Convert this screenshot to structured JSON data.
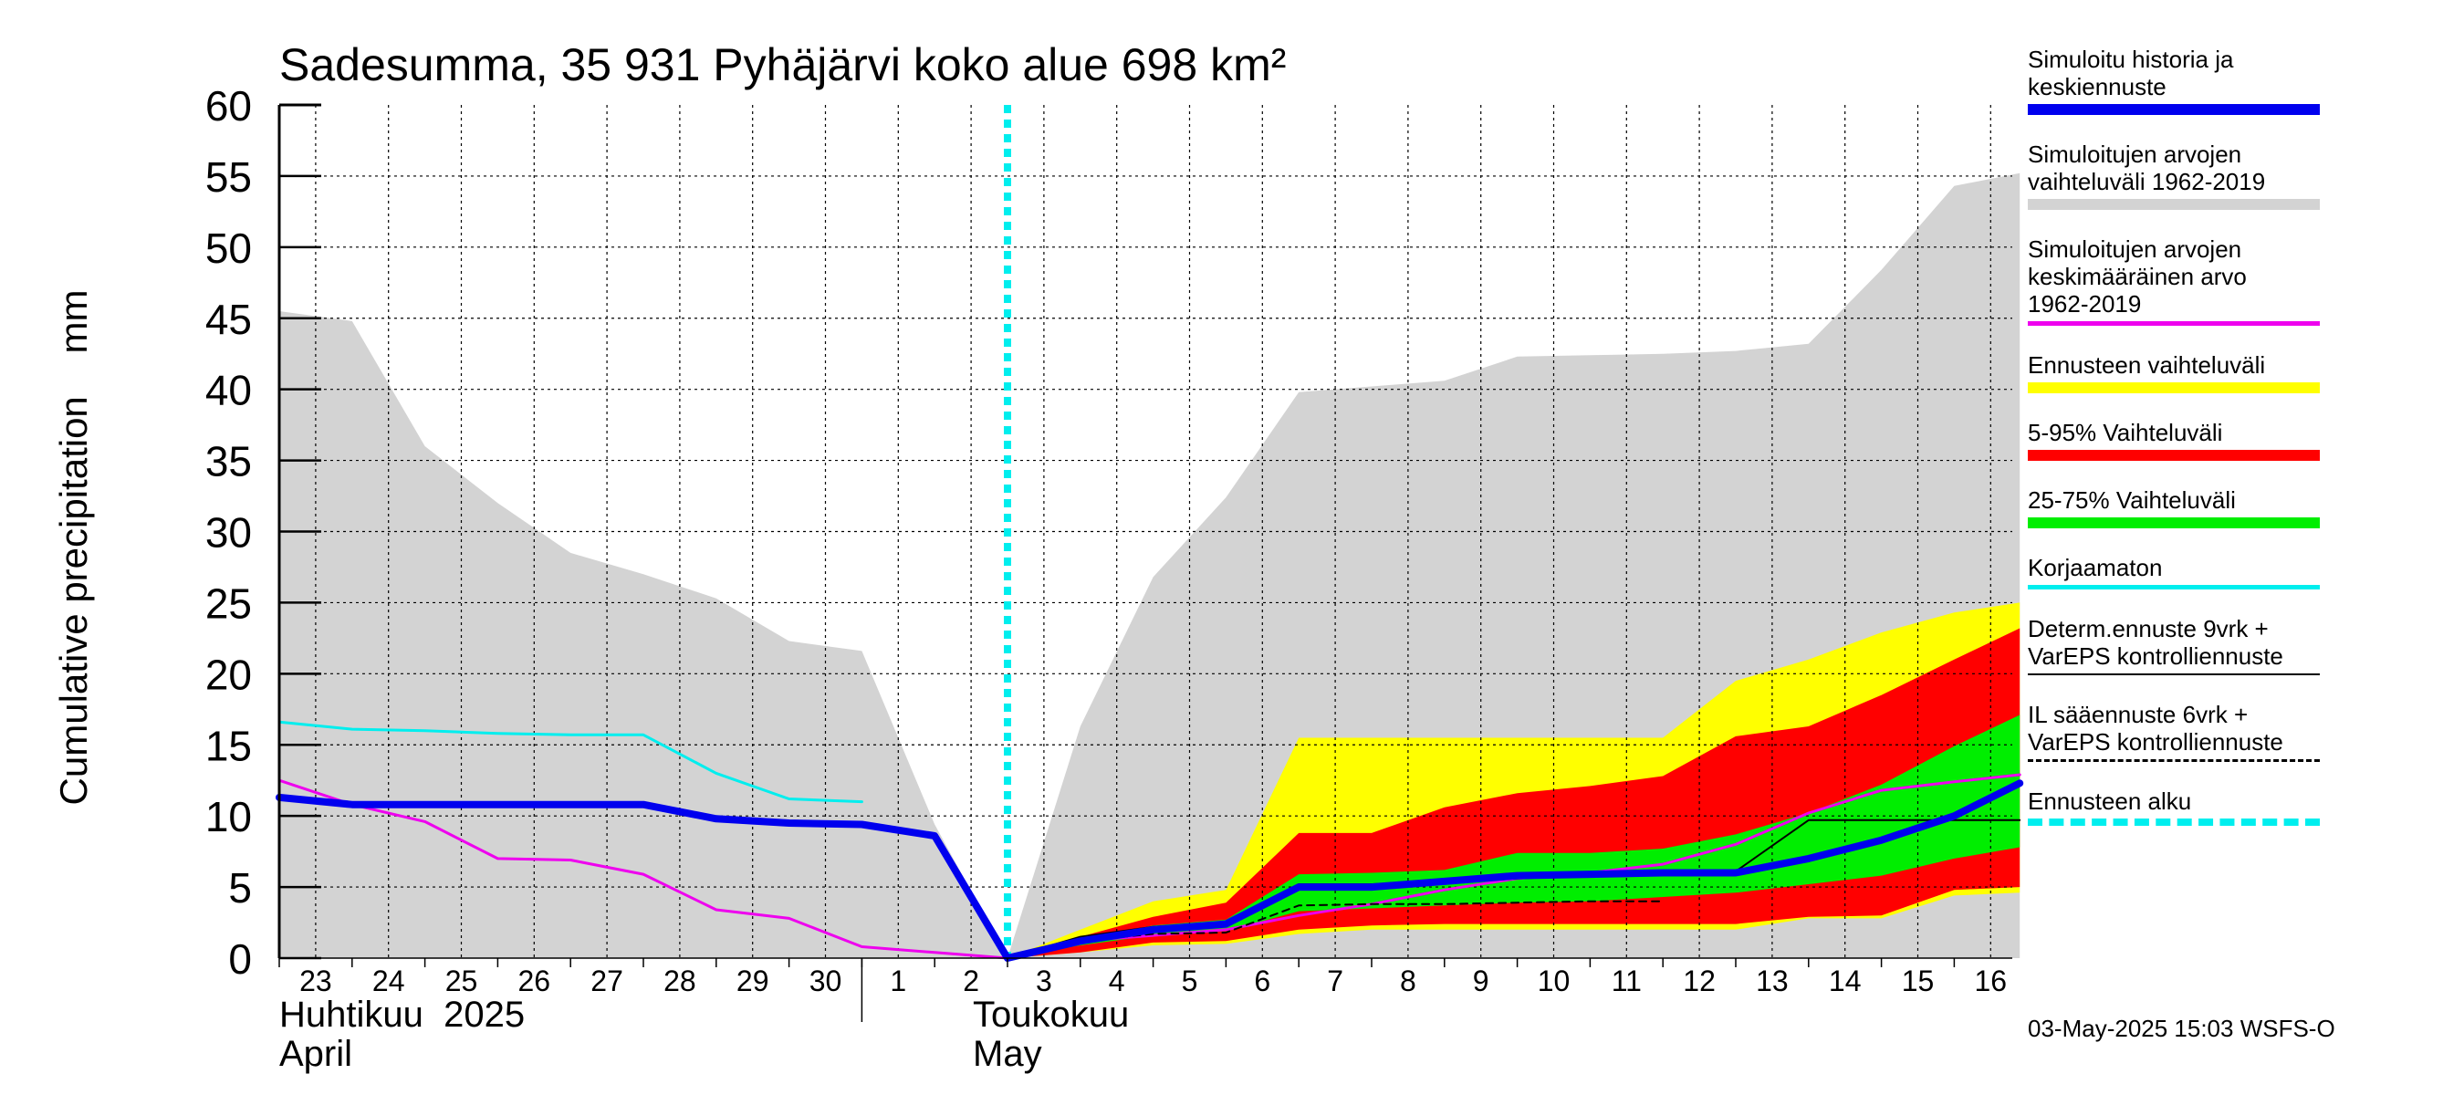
{
  "chart_data": {
    "type": "area",
    "title": "Sadesumma, 35 931 Pyhäjärvi koko alue 698 km²",
    "ylabel": "Cumulative precipitation    mm",
    "ylim": [
      0,
      60
    ],
    "y_ticks": [
      "0",
      "5",
      "10",
      "15",
      "20",
      "25",
      "30",
      "35",
      "40",
      "45",
      "50",
      "55",
      "60"
    ],
    "x_ticks": [
      "23",
      "24",
      "25",
      "26",
      "27",
      "28",
      "29",
      "30",
      "1",
      "2",
      "3",
      "4",
      "5",
      "6",
      "7",
      "8",
      "9",
      "10",
      "11",
      "12",
      "13",
      "14",
      "15",
      "16"
    ],
    "month_labels": [
      {
        "line1": "Huhtikuu  2025",
        "line2": "April"
      },
      {
        "line1": "Toukokuu",
        "line2": "May"
      }
    ],
    "grid": true,
    "legend_position": "right",
    "forecast_start": "3",
    "series": [
      {
        "name": "Simuloitujen arvojen vaihteluväli 1962-2019",
        "kind": "band",
        "color": "#d3d3d3",
        "x": [
          0,
          1,
          2,
          3,
          4,
          5,
          6,
          7,
          8,
          9,
          10,
          11,
          12,
          13,
          14,
          15,
          16,
          17,
          18,
          19,
          20,
          21,
          22,
          23,
          23.9
        ],
        "upper": [
          45.5,
          44.8,
          36,
          32,
          28.5,
          27,
          25.3,
          22.3,
          21.6,
          9.4,
          0,
          16.3,
          26.8,
          32.4,
          39.8,
          40.2,
          40.6,
          42.3,
          42.4,
          42.5,
          42.7,
          43.2,
          48.4,
          54.3,
          55.2
        ],
        "lower": [
          0,
          0,
          0,
          0,
          0,
          0,
          0,
          0,
          0,
          0,
          0,
          0,
          0,
          0,
          0,
          0,
          0,
          0,
          0,
          0,
          0,
          0,
          0,
          0,
          0
        ]
      },
      {
        "name": "Ennusteen vaihteluväli",
        "kind": "band",
        "color": "#ffff00",
        "x": [
          10,
          11,
          12,
          13,
          14,
          15,
          16,
          17,
          18,
          19,
          20,
          21,
          22,
          23,
          23.9
        ],
        "upper": [
          0,
          2,
          4,
          4.8,
          15.5,
          15.5,
          15.5,
          15.5,
          15.5,
          15.5,
          19.5,
          21,
          22.9,
          24.3,
          25
        ],
        "lower": [
          0,
          0.4,
          0.9,
          1.0,
          1.7,
          2.0,
          2.0,
          2.0,
          2.0,
          2.0,
          2.0,
          2.8,
          2.8,
          4.4,
          4.6
        ]
      },
      {
        "name": "5-95% Vaihteluväli",
        "kind": "band",
        "color": "#ff0000",
        "x": [
          10,
          11,
          12,
          13,
          14,
          15,
          16,
          17,
          18,
          19,
          20,
          21,
          22,
          23,
          23.9
        ],
        "upper": [
          0,
          1.5,
          2.9,
          3.9,
          8.8,
          8.8,
          10.6,
          11.6,
          12.1,
          12.8,
          15.6,
          16.3,
          18.5,
          21,
          23.2
        ],
        "lower": [
          0,
          0.4,
          1.1,
          1.2,
          2.0,
          2.3,
          2.4,
          2.4,
          2.4,
          2.4,
          2.4,
          2.9,
          3.0,
          4.8,
          5.0
        ]
      },
      {
        "name": "25-75% Vaihteluväli",
        "kind": "band",
        "color": "#00ee00",
        "x": [
          10,
          11,
          12,
          13,
          14,
          15,
          16,
          17,
          18,
          19,
          20,
          21,
          22,
          23,
          23.9
        ],
        "upper": [
          0,
          1.3,
          2.3,
          2.7,
          5.9,
          6.0,
          6.2,
          7.4,
          7.4,
          7.7,
          8.7,
          10.2,
          12.2,
          14.9,
          17.1
        ],
        "lower": [
          0,
          0.9,
          1.6,
          1.9,
          3.3,
          3.5,
          3.7,
          3.9,
          4.0,
          4.3,
          4.6,
          5.2,
          5.8,
          7.0,
          7.8
        ]
      },
      {
        "name": "Simuloitujen arvojen keskimääräinen arvo\n   1962-2019",
        "kind": "line",
        "color": "#ee00ee",
        "width": 3,
        "x": [
          0,
          1,
          2,
          3,
          4,
          5,
          6,
          7,
          8,
          9,
          10,
          11,
          12,
          13,
          14,
          15,
          16,
          17,
          18,
          19,
          20,
          21,
          22,
          23,
          23.9
        ],
        "y": [
          12.5,
          10.8,
          9.6,
          7.0,
          6.9,
          5.9,
          3.4,
          2.8,
          0.8,
          0.4,
          0,
          1.2,
          1.6,
          2.0,
          3.0,
          3.8,
          4.8,
          5.6,
          6.0,
          6.6,
          8.0,
          10.2,
          11.8,
          12.4,
          12.9
        ]
      },
      {
        "name": "Korjaamaton",
        "kind": "line",
        "color": "#00eeee",
        "width": 3,
        "x": [
          0,
          1,
          2,
          3,
          4,
          5,
          6,
          7,
          8
        ],
        "y": [
          16.6,
          16.1,
          16.0,
          15.8,
          15.7,
          15.7,
          13.0,
          11.2,
          11.0
        ]
      },
      {
        "name": "Determ.ennuste 9vrk +\nVarEPS kontrolliennuste",
        "kind": "line",
        "color": "#000000",
        "width": 2,
        "x": [
          10,
          11,
          12,
          13,
          14,
          15,
          16,
          17,
          18,
          19,
          20,
          21,
          22,
          23,
          23.9
        ],
        "y": [
          0,
          1.5,
          2.2,
          2.5,
          5.2,
          5.2,
          5.3,
          5.6,
          5.8,
          6.1,
          6.1,
          9.7,
          9.7,
          9.7,
          9.7
        ]
      },
      {
        "name": "IL sääennuste 6vrk  +\n  VarEPS kontrolliennuste",
        "kind": "line",
        "color": "#000000",
        "width": 2,
        "dashed": true,
        "x": [
          10,
          11,
          12,
          13,
          14,
          15,
          16,
          17,
          18,
          19
        ],
        "y": [
          0,
          1.2,
          1.7,
          1.8,
          3.7,
          3.8,
          3.8,
          3.9,
          4.0,
          4.0
        ]
      },
      {
        "name": "Simuloitu historia ja\nkeskiennuste",
        "kind": "line",
        "color": "#0000ee",
        "width": 8,
        "x": [
          0,
          1,
          2,
          3,
          4,
          5,
          6,
          7,
          8,
          9,
          10,
          11,
          12,
          13,
          14,
          15,
          16,
          17,
          18,
          19,
          20,
          21,
          22,
          23,
          23.9
        ],
        "y": [
          11.3,
          10.8,
          10.8,
          10.8,
          10.8,
          10.8,
          9.8,
          9.5,
          9.4,
          8.6,
          0,
          1.2,
          2.0,
          2.4,
          5.0,
          5.0,
          5.4,
          5.8,
          5.9,
          6.0,
          6.0,
          7.0,
          8.3,
          10.0,
          12.3
        ]
      }
    ]
  },
  "legend": [
    {
      "label": "Simuloitu historia ja\nkeskiennuste",
      "color": "#0000ee",
      "style": "thick"
    },
    {
      "label": "Simuloitujen arvojen\nvaihteluväli 1962-2019",
      "color": "#d3d3d3",
      "style": "thick"
    },
    {
      "label": "Simuloitujen arvojen\nkeskimääräinen arvo\n   1962-2019",
      "color": "#ee00ee",
      "style": "thin"
    },
    {
      "label": "Ennusteen vaihteluväli",
      "color": "#ffff00",
      "style": "thick"
    },
    {
      "label": "5-95% Vaihteluväli",
      "color": "#ff0000",
      "style": "thick"
    },
    {
      "label": "25-75% Vaihteluväli",
      "color": "#00ee00",
      "style": "thick"
    },
    {
      "label": "Korjaamaton",
      "color": "#00eeee",
      "style": "thin"
    },
    {
      "label": "Determ.ennuste 9vrk +\nVarEPS kontrolliennuste",
      "color": "#000000",
      "style": "hair"
    },
    {
      "label": "IL sääennuste 6vrk  +\n  VarEPS kontrolliennuste",
      "color": "#000000",
      "style": "dashed"
    },
    {
      "label": "Ennusteen alku",
      "color": "#00eeee",
      "style": "dotted"
    }
  ],
  "timestamp": "03-May-2025 15:03 WSFS-O"
}
